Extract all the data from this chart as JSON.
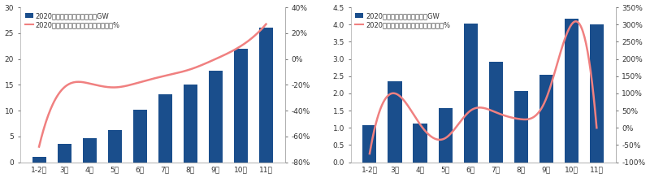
{
  "chart1": {
    "categories": [
      "1-2月",
      "3月",
      "4月",
      "5月",
      "6月",
      "7月",
      "8月",
      "9月",
      "10月",
      "11月"
    ],
    "bar_values": [
      1.1,
      3.5,
      4.6,
      6.2,
      10.2,
      13.2,
      15.1,
      17.8,
      22.0,
      26.0
    ],
    "line_values": [
      -0.68,
      -0.22,
      -0.19,
      -0.22,
      -0.18,
      -0.13,
      -0.08,
      0.0,
      0.1,
      0.27
    ],
    "bar_color": "#1a4e8c",
    "line_color": "#f08080",
    "ylim_left": [
      0,
      30
    ],
    "ylim_right": [
      -0.8,
      0.4
    ],
    "yticks_left": [
      0,
      5,
      10,
      15,
      20,
      25,
      30
    ],
    "yticks_right": [
      -0.8,
      -0.6,
      -0.4,
      -0.2,
      0.0,
      0.2,
      0.4
    ],
    "ytick_labels_right": [
      "-80%",
      "-60%",
      "-40%",
      "-20%",
      "0%",
      "20%",
      "40%"
    ],
    "legend1": "2020年光伏新增累计装机量，GW",
    "legend2": "2020年光伏新增累计装机量同比增速，%"
  },
  "chart2": {
    "categories": [
      "1-2月",
      "3月",
      "4月",
      "5月",
      "6月",
      "7月",
      "8月",
      "9月",
      "10月",
      "11月"
    ],
    "bar_values": [
      1.08,
      2.35,
      1.12,
      1.57,
      4.02,
      2.93,
      2.07,
      2.55,
      4.18,
      4.0
    ],
    "line_values": [
      -0.75,
      1.0,
      0.1,
      -0.3,
      0.5,
      0.45,
      0.25,
      0.85,
      3.0,
      0.0
    ],
    "bar_color": "#1a4e8c",
    "line_color": "#f08080",
    "ylim_left": [
      0,
      4.5
    ],
    "ylim_right": [
      -1.0,
      3.5
    ],
    "yticks_left": [
      0,
      0.5,
      1.0,
      1.5,
      2.0,
      2.5,
      3.0,
      3.5,
      4.0,
      4.5
    ],
    "yticks_right": [
      -1.0,
      -0.5,
      0.0,
      0.5,
      1.0,
      1.5,
      2.0,
      2.5,
      3.0,
      3.5
    ],
    "ytick_labels_right": [
      "-100%",
      "-50%",
      "0%",
      "50%",
      "100%",
      "150%",
      "200%",
      "250%",
      "300%",
      "350%"
    ],
    "legend1": "2020年光伏每月新增装机量，GW",
    "legend2": "2020年光伏每月新增装机量同比增速，%"
  },
  "bg_color": "#ffffff",
  "plot_bg_color": "#ffffff",
  "spine_color": "#aaaaaa",
  "tick_color": "#333333",
  "font_size": 6.5
}
